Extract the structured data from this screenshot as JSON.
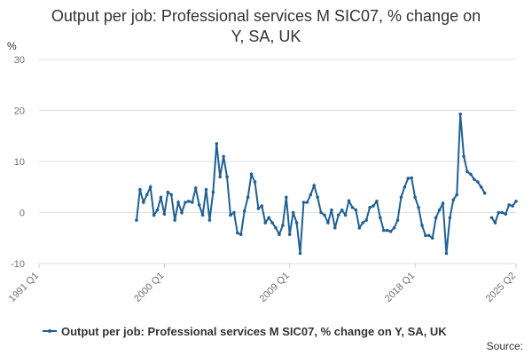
{
  "chart_data": {
    "type": "line",
    "title": "Output per job: Professional services M SIC07, % change on Y, SA, UK",
    "y_unit": "%",
    "source": "Source:",
    "categories": [
      "1991 Q1",
      null,
      null,
      null,
      null,
      null,
      null,
      null,
      null,
      null,
      null,
      null,
      null,
      null,
      null,
      null,
      null,
      null,
      null,
      null,
      null,
      null,
      null,
      null,
      null,
      null,
      null,
      null,
      null,
      null,
      null,
      null,
      null,
      null,
      null,
      null,
      "2000 Q1",
      null,
      null,
      null,
      null,
      null,
      null,
      null,
      null,
      null,
      null,
      null,
      null,
      null,
      null,
      null,
      null,
      null,
      null,
      null,
      null,
      null,
      null,
      null,
      null,
      null,
      null,
      null,
      null,
      null,
      null,
      null,
      null,
      null,
      null,
      null,
      "2009 Q1",
      null,
      null,
      null,
      null,
      null,
      null,
      null,
      null,
      null,
      null,
      null,
      null,
      null,
      null,
      null,
      null,
      null,
      null,
      null,
      null,
      null,
      null,
      null,
      null,
      null,
      null,
      null,
      null,
      null,
      null,
      null,
      null,
      null,
      null,
      null,
      "2018 Q1",
      null,
      null,
      null,
      null,
      null,
      null,
      null,
      null,
      null,
      null,
      null,
      null,
      null,
      null,
      null,
      null,
      null,
      null,
      null,
      null,
      null,
      null,
      null,
      null,
      null,
      null,
      null,
      null,
      "2025 Q2"
    ],
    "series": [
      {
        "name": "Output per job: Professional services M SIC07, % change on Y, SA, UK",
        "color": "#206095",
        "values": [
          null,
          null,
          null,
          null,
          null,
          null,
          null,
          null,
          null,
          null,
          null,
          null,
          null,
          null,
          null,
          null,
          null,
          null,
          null,
          null,
          null,
          null,
          null,
          null,
          null,
          null,
          null,
          null,
          -1.5,
          4.5,
          2,
          3.5,
          5,
          -0.5,
          0.5,
          3,
          -0.3,
          4,
          3.5,
          -1.5,
          2,
          0,
          2,
          2.2,
          2,
          4.8,
          1.5,
          -0.5,
          4.5,
          -1.5,
          4,
          13.5,
          7,
          11,
          7,
          -0.5,
          0,
          -4,
          -4.3,
          0.3,
          3,
          7.5,
          6,
          0.8,
          1.3,
          -2,
          -1,
          -2,
          -3,
          -4.3,
          -2.5,
          3,
          -4.3,
          0,
          -2,
          -8,
          2,
          2,
          3.5,
          5.3,
          3,
          0,
          -0.5,
          -2,
          0.5,
          -3,
          -0.5,
          0.5,
          -0.5,
          2.3,
          1,
          0.5,
          -3,
          -2,
          -1.5,
          1,
          1.3,
          2.2,
          -1,
          -3.5,
          -3.5,
          -3.7,
          -3,
          -1.5,
          3,
          5,
          6.7,
          6.8,
          3,
          1,
          -2.5,
          -4.5,
          -4.5,
          -5,
          -1,
          0.5,
          1.8,
          -8,
          -1,
          2.5,
          3.5,
          19.3,
          11,
          8,
          7.5,
          6.5,
          6,
          5,
          3.8,
          null,
          -1,
          -2,
          0,
          0,
          -0.3,
          1.5,
          1.3,
          2.2
        ]
      }
    ],
    "ylim": [
      -10,
      30
    ],
    "yticks": [
      -10,
      0,
      10,
      20,
      30
    ],
    "grid": true
  }
}
